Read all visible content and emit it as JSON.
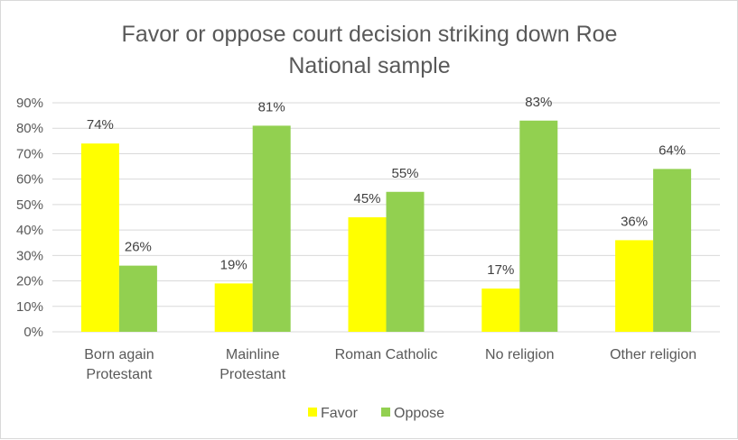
{
  "chart_data": {
    "type": "bar",
    "title": "Favor or oppose court decision striking down Roe",
    "subtitle": "National sample",
    "categories": [
      [
        "Born again",
        "Protestant"
      ],
      [
        "Mainline",
        "Protestant"
      ],
      [
        "Roman Catholic"
      ],
      [
        "No religion"
      ],
      [
        "Other religion"
      ]
    ],
    "series": [
      {
        "name": "Favor",
        "color": "#ffff00",
        "values": [
          74,
          19,
          45,
          17,
          36
        ]
      },
      {
        "name": "Oppose",
        "color": "#92d050",
        "values": [
          26,
          81,
          55,
          83,
          64
        ]
      }
    ],
    "ylim": [
      0,
      90
    ],
    "ytick_step": 10,
    "ytick_suffix": "%",
    "value_suffix": "%",
    "grid": true,
    "legend_position": "bottom"
  }
}
